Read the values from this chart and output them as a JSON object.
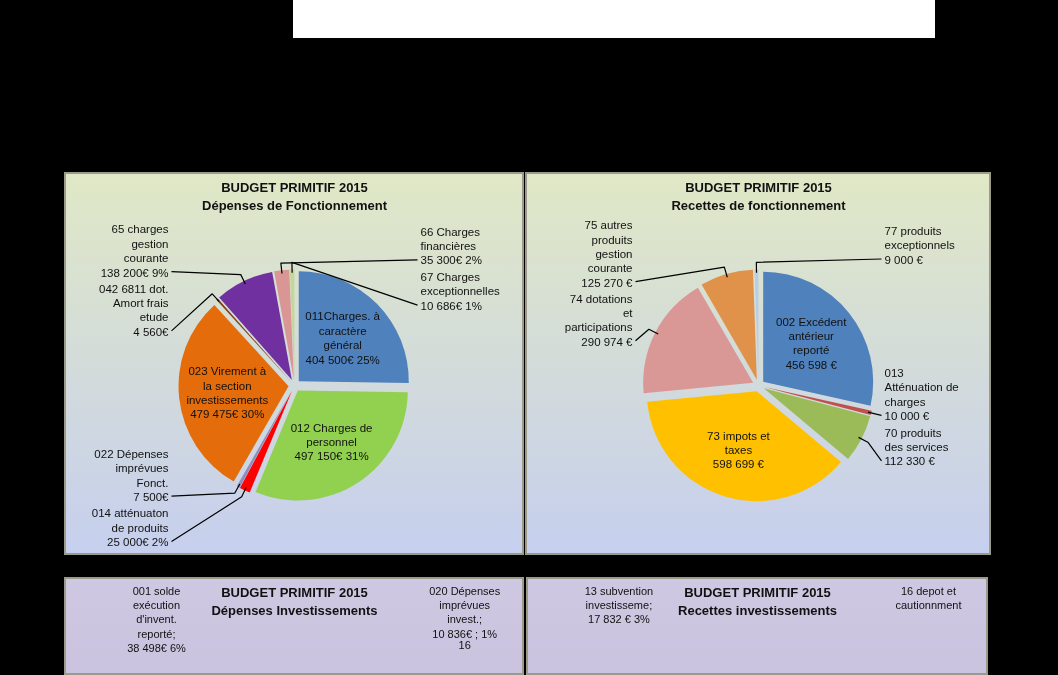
{
  "chart_data": [
    {
      "type": "pie",
      "title": "BUDGET PRIMITIF 2015",
      "subtitle": "Dépenses de Fonctionnement",
      "categories": [
        "011Charges. à caractère général",
        "012 Charges de personnel",
        "014 atténuaton de produits",
        "022 Dépenses imprévues Fonct.",
        "023 Virement à la section investissements",
        "042 6811 dot. Amort frais etude",
        "65 charges gestion courante",
        "66 Charges financières",
        "67 Charges exceptionnelles"
      ],
      "values": [
        404500,
        497150,
        25000,
        7500,
        479475,
        4560,
        138200,
        35300,
        10686
      ],
      "colors": [
        "#4f81bd",
        "#92d050",
        "#ff0000",
        "#8e8cb8",
        "#e46c0a",
        "#7f3f17",
        "#7030a0",
        "#d99694",
        "#c4d79b"
      ],
      "value_labels": [
        "404 500€ 25%",
        "497 150€ 31%",
        "25 000€ 2%",
        "7 500€",
        "479 475€ 30%",
        "4 560€",
        "138 200€ 9%",
        "35 300€ 2%",
        "10 686€ 1%"
      ]
    },
    {
      "type": "pie",
      "title": "BUDGET PRIMITIF 2015",
      "subtitle": "Recettes de fonctionnement",
      "categories": [
        "002 Excédent antérieur reporté",
        "013 Atténuation de charges",
        "70 produits des services",
        "73 impots et taxes",
        "74 dotations et participations",
        "75 autres produits gestion courante",
        "77 produits exceptionnels"
      ],
      "values": [
        456598,
        10000,
        112330,
        598699,
        290974,
        125270,
        9000
      ],
      "colors": [
        "#4f81bd",
        "#c0504d",
        "#9bbb59",
        "#ffc000",
        "#d99795",
        "#e0914a",
        "#b7cde8"
      ],
      "value_labels": [
        "456 598 €",
        "10 000 €",
        "112 330 €",
        "598 699 €",
        "290 974 €",
        "125 270 €",
        "9 000 €"
      ]
    },
    {
      "type": "other",
      "title": "BUDGET PRIMITIF 2015",
      "subtitle": "Dépenses Investissements",
      "annotations": [
        "001 solde exécution d'invent. reporté; 38 498€ 6%",
        "020 Dépenses imprévues invest.; 10 836€ ; 1%",
        "16"
      ]
    },
    {
      "type": "other",
      "title": "BUDGET PRIMITIF 2015",
      "subtitle": "Recettes investissements",
      "annotations": [
        "13 subvention investisseme; 17 832 € 3%",
        "16 depot et cautionnment"
      ]
    }
  ]
}
